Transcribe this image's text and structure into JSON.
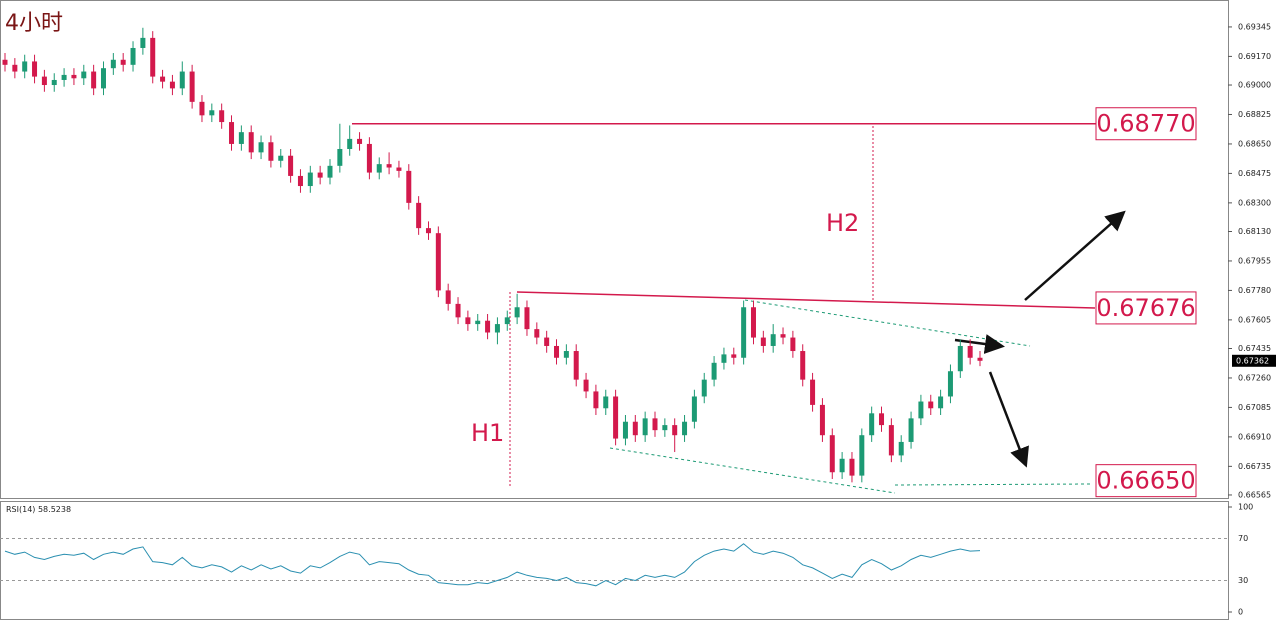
{
  "chart_data": {
    "type": "candlestick",
    "title": "4小时",
    "annotations": [
      "H1",
      "H2"
    ],
    "up_color": "#1c9a74",
    "down_color": "#d3194c",
    "level_color": "#d3194c",
    "ylim": [
      0.66547,
      0.69505
    ],
    "yticks": [
      0.69345,
      {
        "value": 0.6917,
        "label": "0.69170"
      },
      {
        "value": 0.69,
        "label": "0.69000"
      },
      0.68825,
      {
        "value": 0.6865,
        "label": "0.68650"
      },
      0.68475,
      {
        "value": 0.683,
        "label": "0.68300"
      },
      {
        "value": 0.6813,
        "label": "0.68130"
      },
      0.67955,
      {
        "value": 0.6778,
        "label": "0.67780"
      },
      0.67605,
      0.67435,
      {
        "value": 0.6726,
        "label": "0.67260"
      },
      0.67085,
      {
        "value": 0.6691,
        "label": "0.66910"
      },
      0.66735,
      0.66565
    ],
    "levels": [
      {
        "value": 0.6877,
        "label": "0.68770"
      },
      {
        "value": 0.67676,
        "label": "0.67676"
      },
      {
        "value": 0.6665,
        "label": "0.66650"
      }
    ],
    "last_price": {
      "value": 0.67362,
      "label": "0.67362"
    },
    "open": [
      0.6915,
      0.6912,
      0.6908,
      0.6914,
      0.6905,
      0.69,
      0.6903,
      0.6906,
      0.6904,
      0.6908,
      0.6898,
      0.691,
      0.6915,
      0.6912,
      0.6922,
      0.6928,
      0.6905,
      0.6902,
      0.6898,
      0.6908,
      0.689,
      0.6882,
      0.6885,
      0.6878,
      0.6865,
      0.6872,
      0.686,
      0.6866,
      0.6855,
      0.6858,
      0.6846,
      0.684,
      0.6848,
      0.6845,
      0.6852,
      0.6862,
      0.6868,
      0.6865,
      0.6848,
      0.6853,
      0.6851,
      0.6849,
      0.683,
      0.6815,
      0.6812,
      0.6778,
      0.677,
      0.6762,
      0.6758,
      0.676,
      0.6753,
      0.6758,
      0.6762,
      0.6768,
      0.6755,
      0.675,
      0.6745,
      0.6738,
      0.6742,
      0.6725,
      0.6718,
      0.6708,
      0.6715,
      0.669,
      0.67,
      0.6692,
      0.6702,
      0.6695,
      0.6698,
      0.6692,
      0.67,
      0.6715,
      0.6725,
      0.6735,
      0.674,
      0.6738,
      0.6768,
      0.675,
      0.6745,
      0.6752,
      0.675,
      0.6742,
      0.6725,
      0.671,
      0.6692,
      0.667,
      0.6678,
      0.6668,
      0.6692,
      0.6705,
      0.6698,
      0.668,
      0.6688,
      0.6702,
      0.6712,
      0.6708,
      0.6715,
      0.673,
      0.6745,
      0.6738
    ],
    "high": [
      0.6919,
      0.6916,
      0.6918,
      0.6918,
      0.6909,
      0.6907,
      0.691,
      0.691,
      0.6912,
      0.6912,
      0.6914,
      0.6919,
      0.6919,
      0.6926,
      0.6934,
      0.6932,
      0.6909,
      0.6906,
      0.6914,
      0.6912,
      0.6894,
      0.6889,
      0.6889,
      0.6882,
      0.6876,
      0.6876,
      0.687,
      0.687,
      0.6862,
      0.6862,
      0.685,
      0.6852,
      0.6852,
      0.6856,
      0.6877,
      0.6876,
      0.6872,
      0.6869,
      0.6857,
      0.686,
      0.6855,
      0.6853,
      0.6834,
      0.6819,
      0.6816,
      0.6782,
      0.6774,
      0.6766,
      0.6764,
      0.6764,
      0.6762,
      0.6766,
      0.6776,
      0.6772,
      0.6759,
      0.6754,
      0.6749,
      0.6746,
      0.6746,
      0.6729,
      0.6722,
      0.6719,
      0.6719,
      0.6704,
      0.6704,
      0.6706,
      0.6706,
      0.6702,
      0.6702,
      0.6704,
      0.6719,
      0.6729,
      0.6739,
      0.6744,
      0.6744,
      0.6772,
      0.6772,
      0.6754,
      0.6758,
      0.6756,
      0.6754,
      0.6746,
      0.6729,
      0.6714,
      0.6696,
      0.6682,
      0.6682,
      0.6696,
      0.6709,
      0.6709,
      0.6702,
      0.6692,
      0.6706,
      0.6716,
      0.6716,
      0.6719,
      0.6734,
      0.6749,
      0.6749,
      0.6742
    ],
    "low": [
      0.6908,
      0.6904,
      0.6904,
      0.6901,
      0.6896,
      0.6896,
      0.6899,
      0.69,
      0.69,
      0.6894,
      0.6894,
      0.6906,
      0.6908,
      0.6908,
      0.6918,
      0.6901,
      0.6898,
      0.6894,
      0.6894,
      0.6886,
      0.6878,
      0.6878,
      0.6874,
      0.6861,
      0.6861,
      0.6856,
      0.6856,
      0.6851,
      0.6851,
      0.6842,
      0.6836,
      0.6836,
      0.6841,
      0.6841,
      0.6848,
      0.6858,
      0.6861,
      0.6844,
      0.6844,
      0.6847,
      0.6845,
      0.6826,
      0.6811,
      0.6808,
      0.6774,
      0.6766,
      0.6758,
      0.6754,
      0.6754,
      0.6749,
      0.6746,
      0.6754,
      0.6758,
      0.6751,
      0.6746,
      0.6741,
      0.6734,
      0.6734,
      0.6721,
      0.6714,
      0.6704,
      0.6704,
      0.6686,
      0.6686,
      0.6688,
      0.6688,
      0.6691,
      0.6691,
      0.6682,
      0.6688,
      0.6696,
      0.6711,
      0.6721,
      0.6731,
      0.6734,
      0.6734,
      0.6746,
      0.6741,
      0.6741,
      0.6746,
      0.6738,
      0.6721,
      0.6706,
      0.6688,
      0.6666,
      0.6666,
      0.6664,
      0.6664,
      0.6688,
      0.6694,
      0.6676,
      0.6676,
      0.6684,
      0.6698,
      0.6704,
      0.6704,
      0.6711,
      0.6726,
      0.6734,
      0.6733
    ],
    "close": [
      0.6912,
      0.6908,
      0.6914,
      0.6905,
      0.69,
      0.6903,
      0.6906,
      0.6904,
      0.6908,
      0.6898,
      0.691,
      0.6915,
      0.6912,
      0.6922,
      0.6928,
      0.6905,
      0.6902,
      0.6898,
      0.6908,
      0.689,
      0.6882,
      0.6885,
      0.6878,
      0.6865,
      0.6872,
      0.686,
      0.6866,
      0.6855,
      0.6858,
      0.6846,
      0.684,
      0.6848,
      0.6845,
      0.6852,
      0.6862,
      0.6868,
      0.6865,
      0.6848,
      0.6853,
      0.6851,
      0.6849,
      0.683,
      0.6815,
      0.6812,
      0.6778,
      0.677,
      0.6762,
      0.6758,
      0.676,
      0.6753,
      0.6758,
      0.6762,
      0.6768,
      0.6755,
      0.675,
      0.6745,
      0.6738,
      0.6742,
      0.6725,
      0.6718,
      0.6708,
      0.6715,
      0.669,
      0.67,
      0.6692,
      0.6702,
      0.6695,
      0.6698,
      0.6692,
      0.67,
      0.6715,
      0.6725,
      0.6735,
      0.674,
      0.6738,
      0.6768,
      0.675,
      0.6745,
      0.6752,
      0.675,
      0.6742,
      0.6725,
      0.671,
      0.6692,
      0.667,
      0.6678,
      0.6668,
      0.6692,
      0.6705,
      0.6698,
      0.668,
      0.6688,
      0.6702,
      0.6712,
      0.6708,
      0.6715,
      0.673,
      0.6745,
      0.6738,
      0.67362
    ],
    "rsi": {
      "name": "RSI(14)",
      "last": 58.5238,
      "color": "#2a8fb0",
      "ylim": [
        0,
        100
      ],
      "yticks": [
        100,
        70,
        30,
        0
      ],
      "values": [
        58,
        55,
        57,
        52,
        50,
        53,
        55,
        54,
        56,
        50,
        55,
        57,
        55,
        60,
        62,
        48,
        47,
        45,
        52,
        44,
        42,
        45,
        43,
        38,
        44,
        40,
        45,
        41,
        44,
        39,
        37,
        44,
        42,
        47,
        53,
        57,
        55,
        45,
        48,
        47,
        46,
        40,
        36,
        35,
        28,
        27,
        26,
        26,
        28,
        27,
        30,
        33,
        38,
        35,
        33,
        32,
        30,
        33,
        28,
        27,
        25,
        30,
        26,
        32,
        30,
        35,
        33,
        35,
        33,
        38,
        48,
        54,
        58,
        60,
        58,
        65,
        57,
        55,
        58,
        56,
        52,
        45,
        42,
        37,
        32,
        36,
        33,
        45,
        50,
        46,
        40,
        44,
        50,
        54,
        52,
        55,
        58,
        60,
        58,
        58.5238
      ]
    }
  }
}
